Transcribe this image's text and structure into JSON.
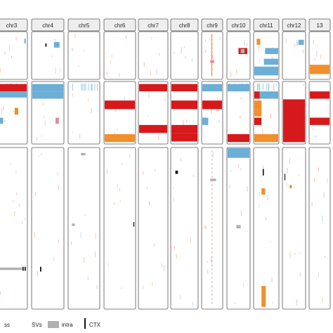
{
  "chart_data": {
    "type": "heatmap",
    "chromosomes": [
      "chr3",
      "chr4",
      "chr5",
      "chr6",
      "chr7",
      "chr8",
      "chr9",
      "chr10",
      "chr11",
      "chr12",
      "13"
    ],
    "panels": [
      "top",
      "middle",
      "bottom"
    ],
    "legend": [
      {
        "text": "ss",
        "kind": "label"
      },
      {
        "text": "SVs",
        "kind": "label"
      },
      {
        "text": "intra",
        "kind": "swatch",
        "color": "#b0b0b0"
      },
      {
        "text": "CTX",
        "kind": "tick",
        "color": "#111111"
      }
    ],
    "colors": {
      "gain": "#d7191c",
      "loss": "#6baed6",
      "loh": "#f28e2b",
      "intra": "#b0b0b0",
      "ctx": "#111111",
      "pink": "#e08aa0",
      "frame": "#555555",
      "header_bg": "#eeeeee"
    },
    "marks": [
      {
        "c": 0,
        "p": 0,
        "y0": 0.14,
        "y1": 0.24,
        "x0": 0.92,
        "x1": 0.97,
        "col": "loss"
      },
      {
        "c": 1,
        "p": 0,
        "y0": 0.21,
        "y1": 0.33,
        "x0": 0.7,
        "x1": 0.88,
        "col": "loss"
      },
      {
        "c": 1,
        "p": 0,
        "y0": 0.24,
        "y1": 0.31,
        "x0": 0.42,
        "x1": 0.46,
        "col": "ctx"
      },
      {
        "c": 6,
        "p": 0,
        "y0": 0.04,
        "y1": 0.95,
        "x0": 0.46,
        "x1": 0.5,
        "col": "loh"
      },
      {
        "c": 6,
        "p": 0,
        "y0": 0.6,
        "y1": 0.66,
        "x0": 0.4,
        "x1": 0.6,
        "col": "pink"
      },
      {
        "c": 7,
        "p": 0,
        "y0": 0.34,
        "y1": 0.47,
        "x0": 0.5,
        "x1": 0.9,
        "col": "gain"
      },
      {
        "c": 7,
        "p": 0,
        "y0": 0.36,
        "y1": 0.45,
        "x0": 0.6,
        "x1": 0.78,
        "col": "intra"
      },
      {
        "c": 8,
        "p": 0,
        "y0": 0.14,
        "y1": 0.27,
        "x0": 0.1,
        "x1": 0.25,
        "col": "loh"
      },
      {
        "c": 8,
        "p": 0,
        "y0": 0.34,
        "y1": 0.47,
        "x0": 0.45,
        "x1": 1.0,
        "col": "loss"
      },
      {
        "c": 8,
        "p": 0,
        "y0": 0.57,
        "y1": 0.7,
        "x0": 0.4,
        "x1": 1.0,
        "col": "loss"
      },
      {
        "c": 8,
        "p": 0,
        "y0": 0.74,
        "y1": 0.93,
        "x0": 0.0,
        "x1": 1.0,
        "col": "loss"
      },
      {
        "c": 9,
        "p": 0,
        "y0": 0.16,
        "y1": 0.27,
        "x0": 0.7,
        "x1": 0.95,
        "col": "loss"
      },
      {
        "c": 10,
        "p": 0,
        "y0": 0.7,
        "y1": 0.9,
        "x0": 0.0,
        "x1": 1.0,
        "col": "loh"
      },
      {
        "c": 0,
        "p": 1,
        "y0": 0.03,
        "y1": 0.15,
        "x0": 0.0,
        "x1": 1.0,
        "col": "gain"
      },
      {
        "c": 0,
        "p": 1,
        "y0": 0.15,
        "y1": 0.25,
        "x0": 0.0,
        "x1": 1.0,
        "col": "loss"
      },
      {
        "c": 0,
        "p": 1,
        "y0": 0.42,
        "y1": 0.53,
        "x0": 0.6,
        "x1": 0.72,
        "col": "loh"
      },
      {
        "c": 0,
        "p": 1,
        "y0": 0.58,
        "y1": 0.68,
        "x0": 0.0,
        "x1": 0.22,
        "col": "loss"
      },
      {
        "c": 1,
        "p": 1,
        "y0": 0.03,
        "y1": 0.15,
        "x0": 0.0,
        "x1": 1.0,
        "col": "loss"
      },
      {
        "c": 1,
        "p": 1,
        "y0": 0.15,
        "y1": 0.27,
        "x0": 0.0,
        "x1": 1.0,
        "col": "loss"
      },
      {
        "c": 1,
        "p": 1,
        "y0": 0.58,
        "y1": 0.68,
        "x0": 0.75,
        "x1": 0.86,
        "col": "pink"
      },
      {
        "c": 3,
        "p": 1,
        "y0": 0.3,
        "y1": 0.44,
        "x0": 0.0,
        "x1": 1.0,
        "col": "gain"
      },
      {
        "c": 3,
        "p": 1,
        "y0": 0.85,
        "y1": 0.98,
        "x0": 0.0,
        "x1": 1.0,
        "col": "loh"
      },
      {
        "c": 4,
        "p": 1,
        "y0": 0.03,
        "y1": 0.15,
        "x0": 0.0,
        "x1": 1.0,
        "col": "gain"
      },
      {
        "c": 4,
        "p": 1,
        "y0": 0.7,
        "y1": 0.83,
        "x0": 0.0,
        "x1": 1.0,
        "col": "gain"
      },
      {
        "c": 5,
        "p": 1,
        "y0": 0.03,
        "y1": 0.15,
        "x0": 0.0,
        "x1": 1.0,
        "col": "gain"
      },
      {
        "c": 5,
        "p": 1,
        "y0": 0.3,
        "y1": 0.44,
        "x0": 0.0,
        "x1": 1.0,
        "col": "gain"
      },
      {
        "c": 5,
        "p": 1,
        "y0": 0.7,
        "y1": 0.83,
        "x0": 0.0,
        "x1": 1.0,
        "col": "gain"
      },
      {
        "c": 5,
        "p": 1,
        "y0": 0.83,
        "y1": 0.97,
        "x0": 0.0,
        "x1": 1.0,
        "col": "gain"
      },
      {
        "c": 6,
        "p": 1,
        "y0": 0.03,
        "y1": 0.15,
        "x0": 0.0,
        "x1": 1.0,
        "col": "loss"
      },
      {
        "c": 6,
        "p": 1,
        "y0": 0.3,
        "y1": 0.44,
        "x0": 0.0,
        "x1": 1.0,
        "col": "gain"
      },
      {
        "c": 6,
        "p": 1,
        "y0": 0.58,
        "y1": 0.7,
        "x0": 0.0,
        "x1": 0.3,
        "col": "loss"
      },
      {
        "c": 7,
        "p": 1,
        "y0": 0.03,
        "y1": 0.15,
        "x0": 0.0,
        "x1": 1.0,
        "col": "loss"
      },
      {
        "c": 7,
        "p": 1,
        "y0": 0.85,
        "y1": 0.98,
        "x0": 0.0,
        "x1": 1.0,
        "col": "gain"
      },
      {
        "c": 8,
        "p": 1,
        "y0": 0.15,
        "y1": 0.27,
        "x0": 0.0,
        "x1": 0.22,
        "col": "gain"
      },
      {
        "c": 8,
        "p": 1,
        "y0": 0.15,
        "y1": 0.27,
        "x0": 0.22,
        "x1": 1.0,
        "col": "loss"
      },
      {
        "c": 8,
        "p": 1,
        "y0": 0.3,
        "y1": 0.44,
        "x0": 0.0,
        "x1": 0.3,
        "col": "loh"
      },
      {
        "c": 8,
        "p": 1,
        "y0": 0.44,
        "y1": 0.56,
        "x0": 0.0,
        "x1": 0.3,
        "col": "loh"
      },
      {
        "c": 8,
        "p": 1,
        "y0": 0.58,
        "y1": 0.7,
        "x0": 0.0,
        "x1": 0.3,
        "col": "gain"
      },
      {
        "c": 8,
        "p": 1,
        "y0": 0.85,
        "y1": 0.98,
        "x0": 0.0,
        "x1": 1.0,
        "col": "loh"
      },
      {
        "c": 9,
        "p": 1,
        "y0": 0.28,
        "y1": 0.98,
        "x0": 0.0,
        "x1": 1.0,
        "col": "gain"
      },
      {
        "c": 10,
        "p": 1,
        "y0": 0.15,
        "y1": 0.27,
        "x0": 0.0,
        "x1": 1.0,
        "col": "gain"
      },
      {
        "c": 10,
        "p": 1,
        "y0": 0.58,
        "y1": 0.7,
        "x0": 0.0,
        "x1": 1.0,
        "col": "gain"
      },
      {
        "c": 0,
        "p": 2,
        "y0": 0.745,
        "y1": 0.76,
        "x0": 0.0,
        "x1": 0.85,
        "col": "intra"
      },
      {
        "c": 0,
        "p": 2,
        "y0": 0.74,
        "y1": 0.765,
        "x0": 0.86,
        "x1": 0.9,
        "col": "ctx"
      },
      {
        "c": 0,
        "p": 2,
        "y0": 0.74,
        "y1": 0.765,
        "x0": 0.93,
        "x1": 0.97,
        "col": "ctx"
      },
      {
        "c": 1,
        "p": 2,
        "y0": 0.74,
        "y1": 0.77,
        "x0": 0.25,
        "x1": 0.29,
        "col": "ctx"
      },
      {
        "c": 2,
        "p": 2,
        "y0": 0.03,
        "y1": 0.045,
        "x0": 0.4,
        "x1": 0.55,
        "col": "intra"
      },
      {
        "c": 2,
        "p": 2,
        "y0": 0.47,
        "y1": 0.485,
        "x0": 0.1,
        "x1": 0.2,
        "col": "intra"
      },
      {
        "c": 3,
        "p": 2,
        "y0": 0.46,
        "y1": 0.49,
        "x0": 0.95,
        "x1": 0.98,
        "col": "ctx"
      },
      {
        "c": 5,
        "p": 2,
        "y0": 0.14,
        "y1": 0.16,
        "x0": 0.15,
        "x1": 0.25,
        "col": "ctx"
      },
      {
        "c": 6,
        "p": 2,
        "y0": 0.19,
        "y1": 0.205,
        "x0": 0.4,
        "x1": 0.7,
        "col": "intra"
      },
      {
        "c": 7,
        "p": 2,
        "y0": 0.0,
        "y1": 0.06,
        "x0": 0.0,
        "x1": 1.0,
        "col": "loss"
      },
      {
        "c": 7,
        "p": 2,
        "y0": 0.48,
        "y1": 0.5,
        "x0": 0.4,
        "x1": 0.6,
        "col": "intra"
      },
      {
        "c": 8,
        "p": 2,
        "y0": 0.25,
        "y1": 0.29,
        "x0": 0.3,
        "x1": 0.45,
        "col": "loh"
      },
      {
        "c": 8,
        "p": 2,
        "y0": 0.13,
        "y1": 0.17,
        "x0": 0.35,
        "x1": 0.4,
        "col": "ctx"
      },
      {
        "c": 8,
        "p": 2,
        "y0": 0.86,
        "y1": 0.99,
        "x0": 0.3,
        "x1": 0.48,
        "col": "loh"
      },
      {
        "c": 9,
        "p": 2,
        "y0": 0.23,
        "y1": 0.25,
        "x0": 0.3,
        "x1": 0.4,
        "col": "loh"
      },
      {
        "c": 9,
        "p": 2,
        "y0": 0.16,
        "y1": 0.2,
        "x0": 0.06,
        "x1": 0.1,
        "col": "ctx"
      }
    ]
  }
}
